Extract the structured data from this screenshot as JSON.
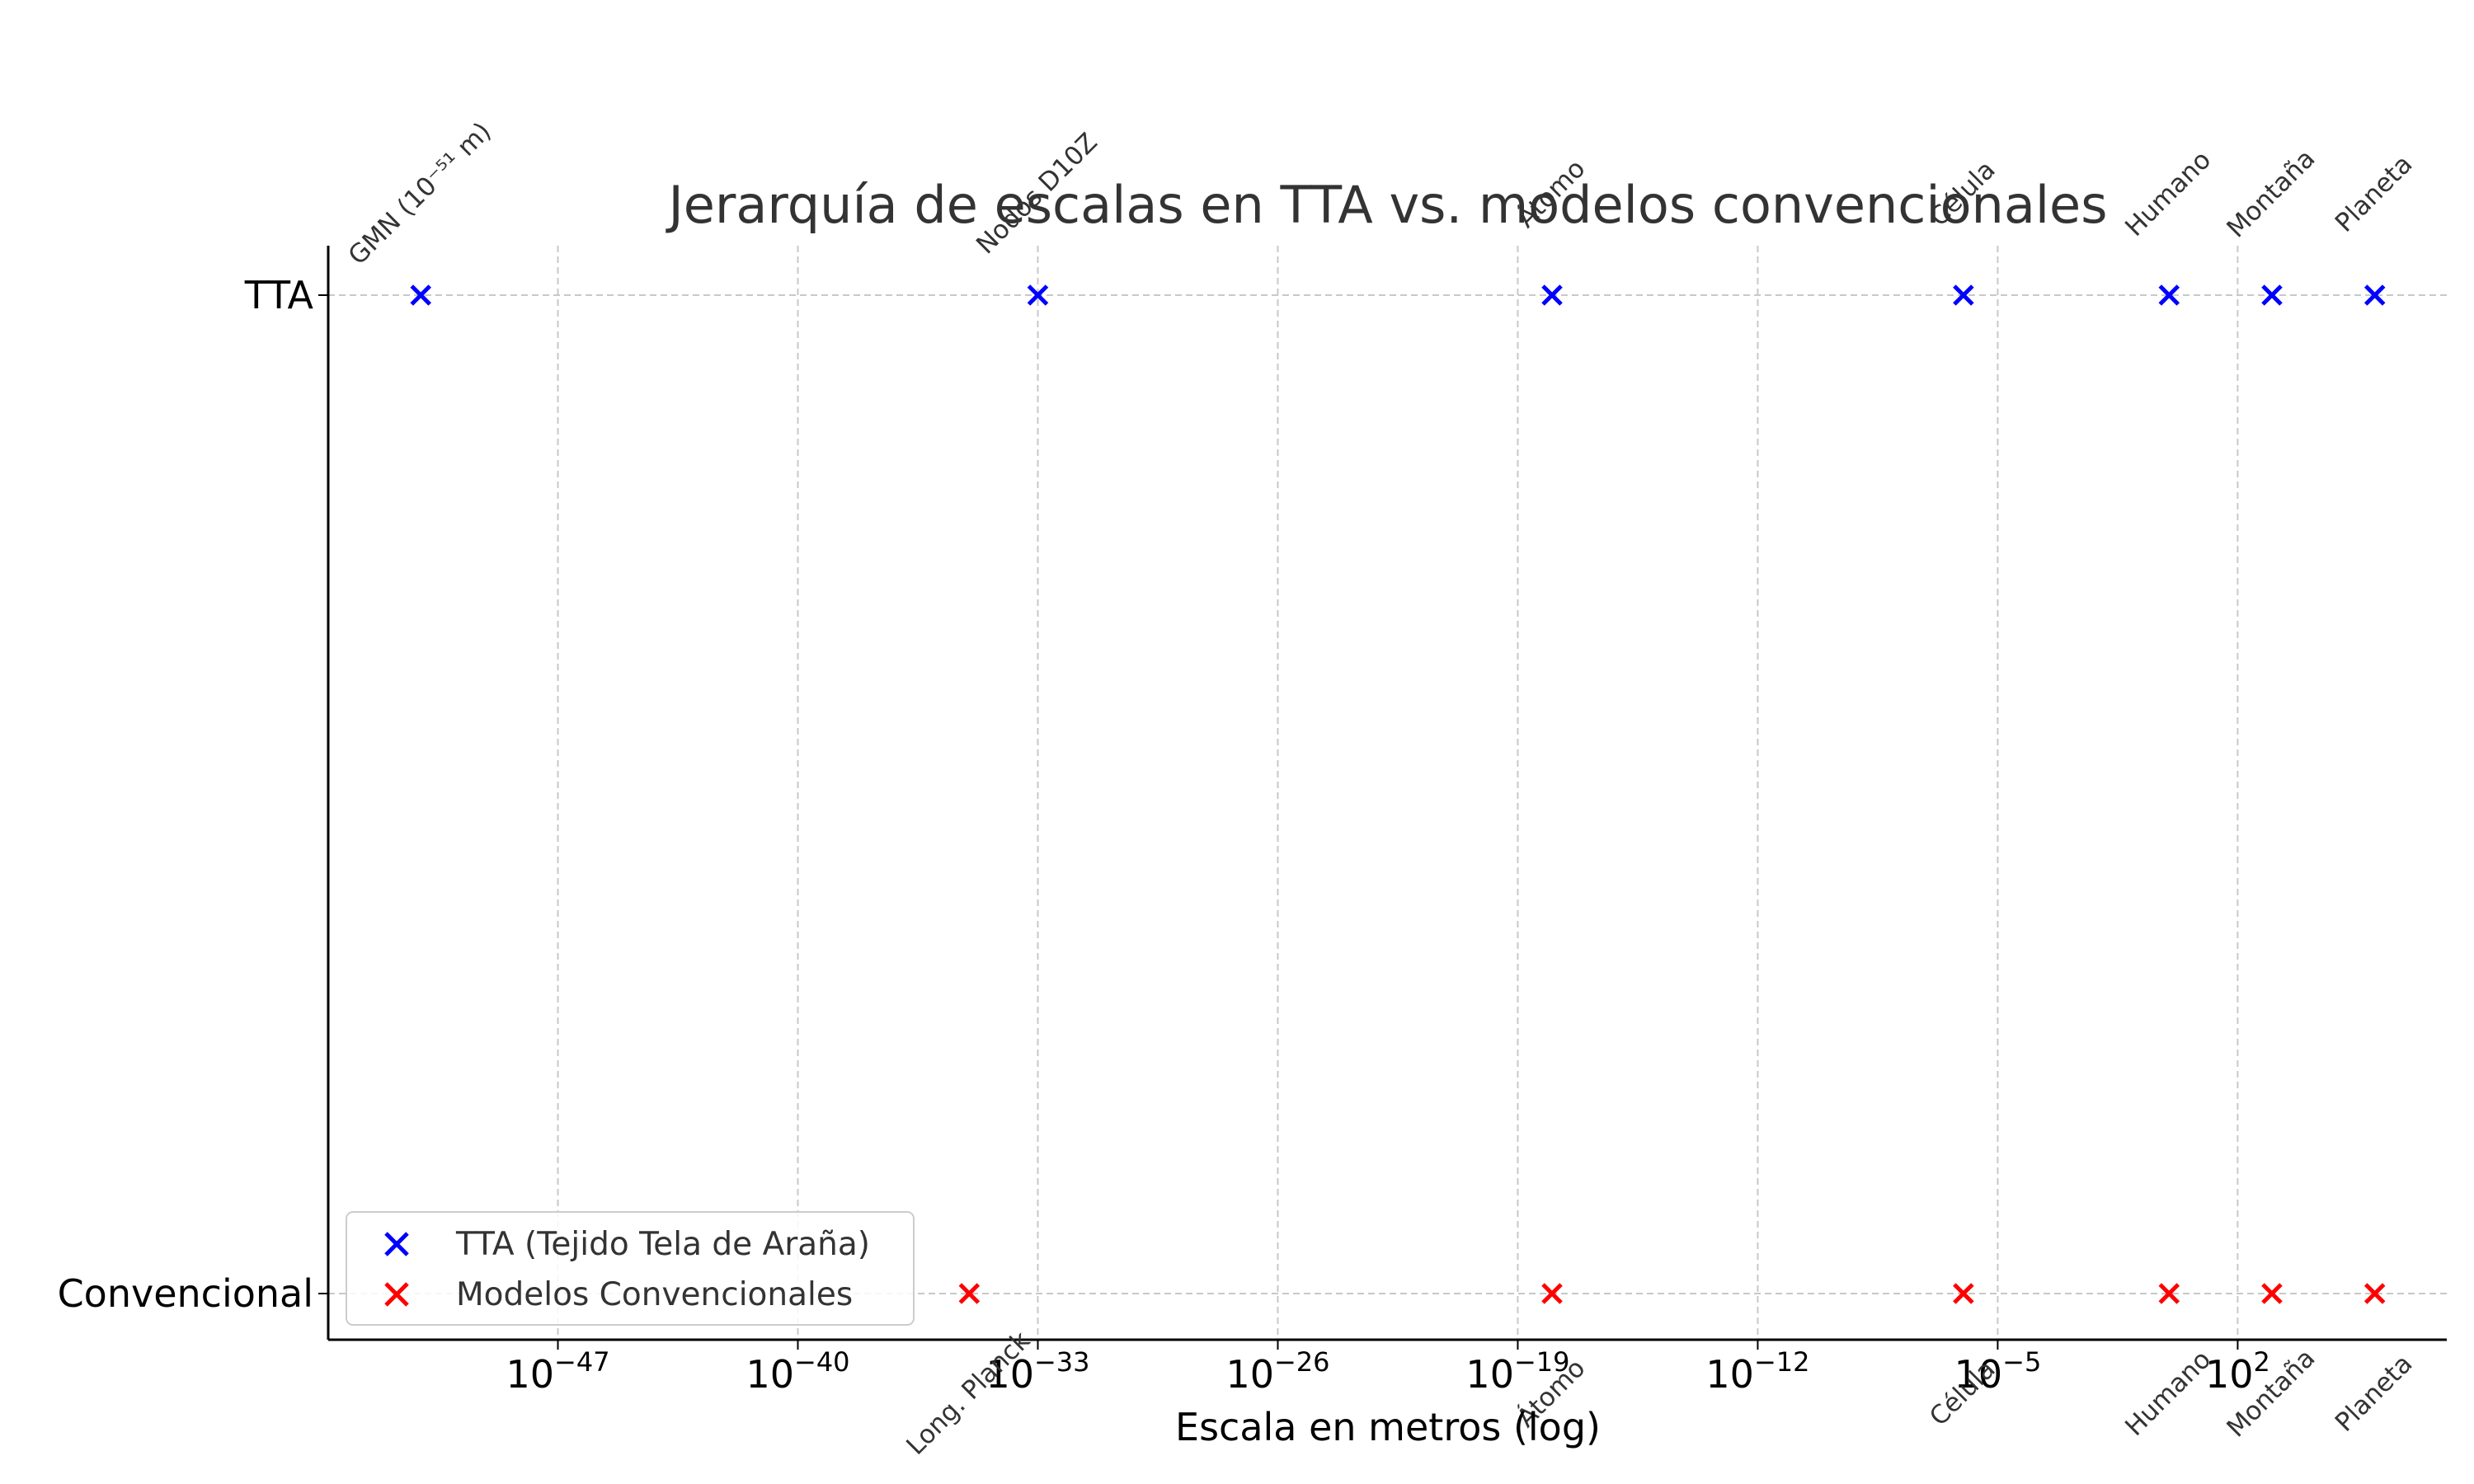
{
  "chart_data": {
    "type": "scatter",
    "title": "Jerarquía de escalas en TTA vs. modelos convencionales",
    "xlabel": "Escala en metros (log)",
    "ylabel": "",
    "x_scale": "log",
    "x_exp_range": [
      -53.7,
      8.1
    ],
    "x_ticks": [
      {
        "base": "10",
        "exp": "−47",
        "value_exp": -47
      },
      {
        "base": "10",
        "exp": "−40",
        "value_exp": -40
      },
      {
        "base": "10",
        "exp": "−33",
        "value_exp": -33
      },
      {
        "base": "10",
        "exp": "−26",
        "value_exp": -26
      },
      {
        "base": "10",
        "exp": "−19",
        "value_exp": -19
      },
      {
        "base": "10",
        "exp": "−12",
        "value_exp": -12
      },
      {
        "base": "10",
        "exp": "−5",
        "value_exp": -5
      },
      {
        "base": "10",
        "exp": "2",
        "value_exp": 2
      }
    ],
    "y_categories": [
      "TTA",
      "Convencional"
    ],
    "grid": true,
    "legend_position": "lower-left",
    "series": [
      {
        "name": "TTA (Tejido Tela de Araña)",
        "color": "#0000ff",
        "marker": "x",
        "y_category": "TTA",
        "label_side": "above",
        "points": [
          {
            "label": "GMN (10⁻⁵¹ m)",
            "x_exp": -51
          },
          {
            "label": "Nodos D10Z",
            "x_exp": -33
          },
          {
            "label": "Átomo",
            "x_exp": -18
          },
          {
            "label": "Célula",
            "x_exp": -6
          },
          {
            "label": "Humano",
            "x_exp": 0
          },
          {
            "label": "Montaña",
            "x_exp": 3
          },
          {
            "label": "Planeta",
            "x_exp": 6
          }
        ]
      },
      {
        "name": "Modelos Convencionales",
        "color": "#ff0000",
        "marker": "x",
        "y_category": "Convencional",
        "label_side": "below",
        "points": [
          {
            "label": "Long. Planck",
            "x_exp": -35
          },
          {
            "label": "Átomo",
            "x_exp": -18
          },
          {
            "label": "Célula",
            "x_exp": -6
          },
          {
            "label": "Humano",
            "x_exp": 0
          },
          {
            "label": "Montaña",
            "x_exp": 3
          },
          {
            "label": "Planeta",
            "x_exp": 6
          }
        ]
      }
    ]
  }
}
